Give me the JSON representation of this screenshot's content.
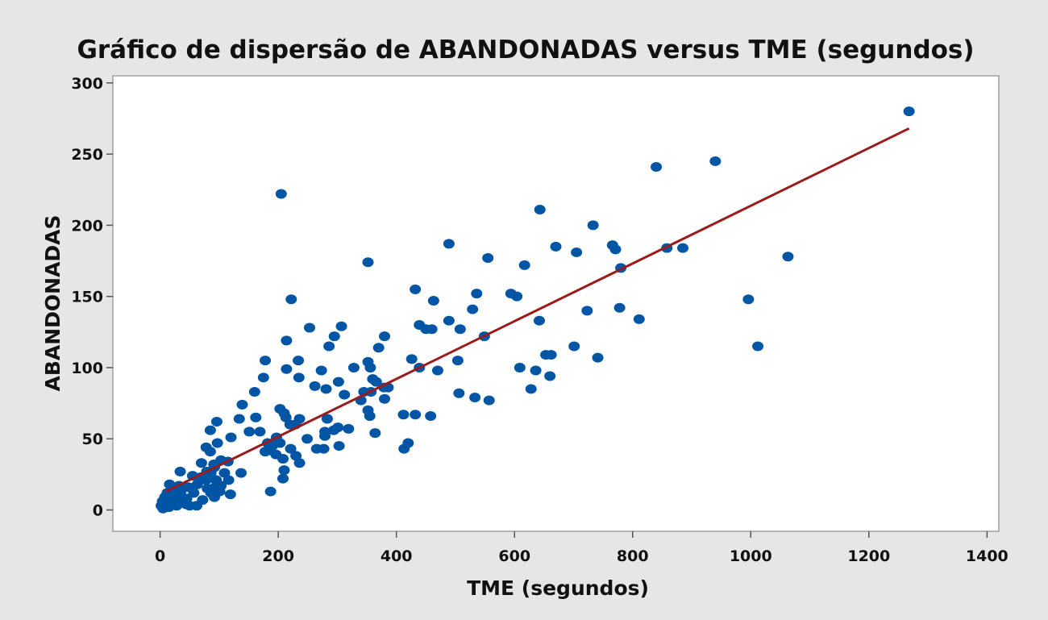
{
  "chart_data": {
    "type": "scatter",
    "title": "Gráfico de dispersão de ABANDONADAS versus TME (segundos)",
    "xlabel": "TME (segundos)",
    "ylabel": "ABANDONADAS",
    "xlim": [
      -80,
      1420
    ],
    "ylim": [
      -15,
      305
    ],
    "x_ticks": [
      0,
      200,
      400,
      600,
      800,
      1000,
      1200,
      1400
    ],
    "x_tick_labels": [
      "0",
      "200",
      "400",
      "600",
      "800",
      "1000",
      "1200",
      "1400"
    ],
    "y_ticks": [
      0,
      50,
      100,
      150,
      200,
      250,
      300
    ],
    "y_tick_labels": [
      "0",
      "50",
      "100",
      "150",
      "200",
      "250",
      "300"
    ],
    "grid": false,
    "colors": {
      "points": "#0055a4",
      "fit_line": "#9b1b1b",
      "background": "#e6e6e6",
      "plot_area": "#ffffff",
      "frame": "#a0a0a0"
    },
    "series": [
      {
        "points": [
          [
            1268,
            280
          ],
          [
            840,
            241
          ],
          [
            940,
            245
          ],
          [
            205,
            222
          ],
          [
            643,
            211
          ],
          [
            733,
            200
          ],
          [
            489,
            187
          ],
          [
            670,
            185
          ],
          [
            766,
            186
          ],
          [
            771,
            183
          ],
          [
            858,
            184
          ],
          [
            885,
            184
          ],
          [
            705,
            181
          ],
          [
            1063,
            178
          ],
          [
            555,
            177
          ],
          [
            352,
            174
          ],
          [
            617,
            172
          ],
          [
            780,
            170
          ],
          [
            432,
            155
          ],
          [
            536,
            152
          ],
          [
            594,
            152
          ],
          [
            604,
            150
          ],
          [
            222,
            148
          ],
          [
            463,
            147
          ],
          [
            996,
            148
          ],
          [
            529,
            141
          ],
          [
            723,
            140
          ],
          [
            778,
            142
          ],
          [
            811,
            134
          ],
          [
            489,
            133
          ],
          [
            642,
            133
          ],
          [
            439,
            130
          ],
          [
            307,
            129
          ],
          [
            508,
            127
          ],
          [
            253,
            128
          ],
          [
            450,
            127
          ],
          [
            460,
            127
          ],
          [
            295,
            122
          ],
          [
            380,
            122
          ],
          [
            549,
            122
          ],
          [
            214,
            119
          ],
          [
            286,
            115
          ],
          [
            370,
            114
          ],
          [
            701,
            115
          ],
          [
            1012,
            115
          ],
          [
            653,
            109
          ],
          [
            662,
            109
          ],
          [
            741,
            107
          ],
          [
            178,
            105
          ],
          [
            234,
            105
          ],
          [
            352,
            104
          ],
          [
            426,
            106
          ],
          [
            504,
            105
          ],
          [
            328,
            100
          ],
          [
            356,
            100
          ],
          [
            439,
            100
          ],
          [
            470,
            98
          ],
          [
            609,
            100
          ],
          [
            636,
            98
          ],
          [
            214,
            99
          ],
          [
            273,
            98
          ],
          [
            175,
            93
          ],
          [
            235,
            93
          ],
          [
            302,
            90
          ],
          [
            360,
            92
          ],
          [
            366,
            90
          ],
          [
            660,
            94
          ],
          [
            262,
            87
          ],
          [
            281,
            85
          ],
          [
            160,
            83
          ],
          [
            345,
            83
          ],
          [
            357,
            83
          ],
          [
            379,
            86
          ],
          [
            386,
            86
          ],
          [
            628,
            85
          ],
          [
            312,
            81
          ],
          [
            380,
            78
          ],
          [
            506,
            82
          ],
          [
            533,
            79
          ],
          [
            557,
            77
          ],
          [
            340,
            77
          ],
          [
            139,
            74
          ],
          [
            203,
            71
          ],
          [
            210,
            68
          ],
          [
            352,
            70
          ],
          [
            355,
            66
          ],
          [
            412,
            67
          ],
          [
            432,
            67
          ],
          [
            458,
            66
          ],
          [
            134,
            64
          ],
          [
            162,
            65
          ],
          [
            236,
            64
          ],
          [
            283,
            64
          ],
          [
            96,
            62
          ],
          [
            213,
            65
          ],
          [
            220,
            60
          ],
          [
            229,
            60
          ],
          [
            85,
            56
          ],
          [
            151,
            55
          ],
          [
            169,
            55
          ],
          [
            279,
            55
          ],
          [
            319,
            57
          ],
          [
            364,
            54
          ],
          [
            249,
            50
          ],
          [
            279,
            52
          ],
          [
            294,
            56
          ],
          [
            301,
            58
          ],
          [
            120,
            51
          ],
          [
            197,
            51
          ],
          [
            203,
            47
          ],
          [
            97,
            47
          ],
          [
            78,
            44
          ],
          [
            182,
            47
          ],
          [
            190,
            45
          ],
          [
            221,
            43
          ],
          [
            265,
            43
          ],
          [
            277,
            43
          ],
          [
            303,
            45
          ],
          [
            413,
            43
          ],
          [
            420,
            47
          ],
          [
            85,
            41
          ],
          [
            178,
            41
          ],
          [
            186,
            42
          ],
          [
            196,
            39
          ],
          [
            208,
            36
          ],
          [
            230,
            38
          ],
          [
            103,
            35
          ],
          [
            115,
            34
          ],
          [
            70,
            33
          ],
          [
            91,
            32
          ],
          [
            236,
            33
          ],
          [
            92,
            30
          ],
          [
            79,
            27
          ],
          [
            86,
            26
          ],
          [
            109,
            26
          ],
          [
            137,
            26
          ],
          [
            210,
            28
          ],
          [
            34,
            27
          ],
          [
            55,
            24
          ],
          [
            69,
            23
          ],
          [
            78,
            21
          ],
          [
            95,
            21
          ],
          [
            116,
            21
          ],
          [
            208,
            22
          ],
          [
            16,
            18
          ],
          [
            32,
            17
          ],
          [
            48,
            16
          ],
          [
            63,
            18
          ],
          [
            80,
            15
          ],
          [
            93,
            16
          ],
          [
            103,
            17
          ],
          [
            187,
            13
          ],
          [
            12,
            12
          ],
          [
            22,
            12
          ],
          [
            35,
            13
          ],
          [
            57,
            12
          ],
          [
            86,
            12
          ],
          [
            101,
            13
          ],
          [
            119,
            11
          ],
          [
            8,
            9
          ],
          [
            18,
            8
          ],
          [
            32,
            7
          ],
          [
            45,
            8
          ],
          [
            72,
            7
          ],
          [
            92,
            9
          ],
          [
            4,
            6
          ],
          [
            13,
            5
          ],
          [
            24,
            5
          ],
          [
            44,
            4
          ],
          [
            62,
            3
          ],
          [
            2,
            3
          ],
          [
            10,
            2
          ],
          [
            28,
            3
          ],
          [
            50,
            3
          ],
          [
            5,
            1
          ],
          [
            15,
            2
          ]
        ]
      }
    ],
    "fit_line": {
      "x": [
        10,
        1268
      ],
      "y": [
        13,
        268
      ]
    }
  }
}
